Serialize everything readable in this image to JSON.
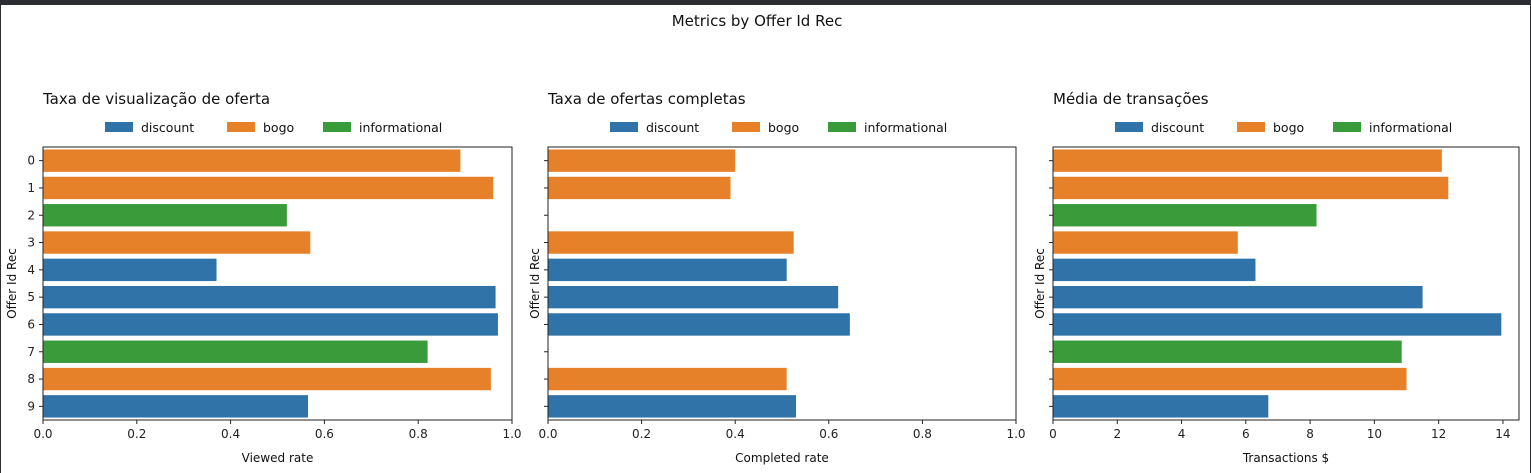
{
  "figure": {
    "suptitle": "Metrics by Offer Id Rec"
  },
  "colors": {
    "discount": "#2f73a8",
    "bogo": "#e6812a",
    "informational": "#3a9b3a"
  },
  "chart_data": [
    {
      "type": "bar",
      "orientation": "horizontal",
      "title": "Taxa de visualização de oferta",
      "xlabel": "Viewed rate",
      "ylabel": "Offer Id Rec",
      "xlim": [
        0,
        1.0
      ],
      "xticks": [
        "0.0",
        "0.2",
        "0.4",
        "0.6",
        "0.8",
        "1.0"
      ],
      "categories": [
        "0",
        "1",
        "2",
        "3",
        "4",
        "5",
        "6",
        "7",
        "8",
        "9"
      ],
      "legend": [
        "discount",
        "bogo",
        "informational"
      ],
      "legend_position": "top-center",
      "values": [
        0.89,
        0.96,
        0.52,
        0.57,
        0.37,
        0.965,
        0.97,
        0.82,
        0.955,
        0.565
      ],
      "offer_type": [
        "bogo",
        "bogo",
        "informational",
        "bogo",
        "discount",
        "discount",
        "discount",
        "informational",
        "bogo",
        "discount"
      ]
    },
    {
      "type": "bar",
      "orientation": "horizontal",
      "title": "Taxa de ofertas completas",
      "xlabel": "Completed rate",
      "ylabel": "Offer Id Rec",
      "xlim": [
        0,
        1.0
      ],
      "xticks": [
        "0.0",
        "0.2",
        "0.4",
        "0.6",
        "0.8",
        "1.0"
      ],
      "categories": [
        "0",
        "1",
        "2",
        "3",
        "4",
        "5",
        "6",
        "7",
        "8",
        "9"
      ],
      "legend": [
        "discount",
        "bogo",
        "informational"
      ],
      "legend_position": "top-center",
      "values": [
        0.4,
        0.39,
        null,
        0.525,
        0.51,
        0.62,
        0.645,
        null,
        0.51,
        0.53
      ],
      "offer_type": [
        "bogo",
        "bogo",
        "informational",
        "bogo",
        "discount",
        "discount",
        "discount",
        "informational",
        "bogo",
        "discount"
      ]
    },
    {
      "type": "bar",
      "orientation": "horizontal",
      "title": "Média de transações",
      "xlabel": "Transactions $",
      "ylabel": "Offer Id Rec",
      "xlim": [
        0,
        14.5
      ],
      "xticks": [
        "0",
        "2",
        "4",
        "6",
        "8",
        "10",
        "12",
        "14"
      ],
      "categories": [
        "0",
        "1",
        "2",
        "3",
        "4",
        "5",
        "6",
        "7",
        "8",
        "9"
      ],
      "legend": [
        "discount",
        "bogo",
        "informational"
      ],
      "legend_position": "top-center",
      "values": [
        12.1,
        12.3,
        8.2,
        5.75,
        6.3,
        11.5,
        13.95,
        10.85,
        11.0,
        6.7
      ],
      "offer_type": [
        "bogo",
        "bogo",
        "informational",
        "bogo",
        "discount",
        "discount",
        "discount",
        "informational",
        "bogo",
        "discount"
      ]
    }
  ]
}
